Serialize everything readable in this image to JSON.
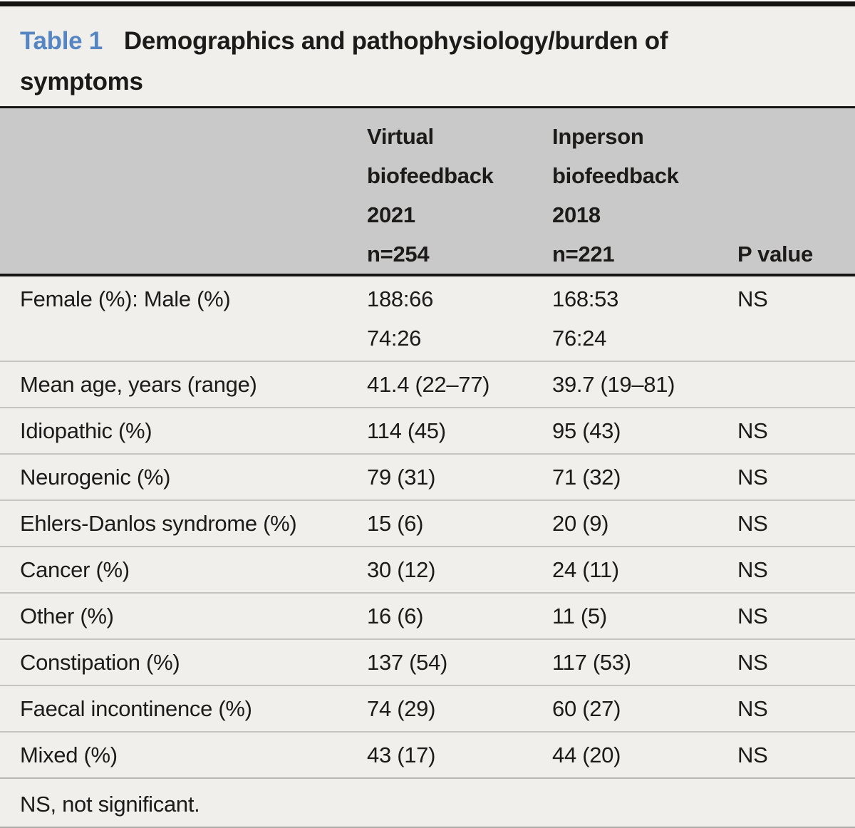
{
  "colors": {
    "accent_blue": "#5585c2",
    "header_bg": "#c9c9c9",
    "body_bg": "#f1efec",
    "rule_black": "#161514",
    "separator_gray": "#c6c4c1"
  },
  "table": {
    "title_label": "Table 1",
    "title_text": "Demographics and pathophysiology/burden of\nsymptoms",
    "header": {
      "col1": "",
      "col2": "Virtual\nbiofeedback\n2021\nn=254",
      "col3": "Inperson\nbiofeedback\n2018\nn=221",
      "col4": "P value"
    },
    "rows": [
      {
        "label": "Female (%): Male (%)",
        "virtual": "188:66\n74:26",
        "inperson": "168:53\n76:24",
        "p": "NS"
      },
      {
        "label": "Mean age, years (range)",
        "virtual": "41.4 (22–77)",
        "inperson": "39.7 (19–81)",
        "p": ""
      },
      {
        "label": "Idiopathic (%)",
        "virtual": "114 (45)",
        "inperson": "95 (43)",
        "p": "NS"
      },
      {
        "label": "Neurogenic (%)",
        "virtual": "79 (31)",
        "inperson": "71 (32)",
        "p": "NS"
      },
      {
        "label": "Ehlers-Danlos syndrome (%)",
        "virtual": "15 (6)",
        "inperson": "20 (9)",
        "p": "NS"
      },
      {
        "label": "Cancer (%)",
        "virtual": "30 (12)",
        "inperson": "24 (11)",
        "p": "NS"
      },
      {
        "label": "Other (%)",
        "virtual": "16 (6)",
        "inperson": "11 (5)",
        "p": "NS"
      },
      {
        "label": "Constipation (%)",
        "virtual": "137 (54)",
        "inperson": "117 (53)",
        "p": "NS"
      },
      {
        "label": "Faecal incontinence (%)",
        "virtual": "74 (29)",
        "inperson": "60 (27)",
        "p": "NS"
      },
      {
        "label": "Mixed (%)",
        "virtual": "43 (17)",
        "inperson": "44 (20)",
        "p": "NS"
      }
    ],
    "footnote": "NS, not significant."
  }
}
